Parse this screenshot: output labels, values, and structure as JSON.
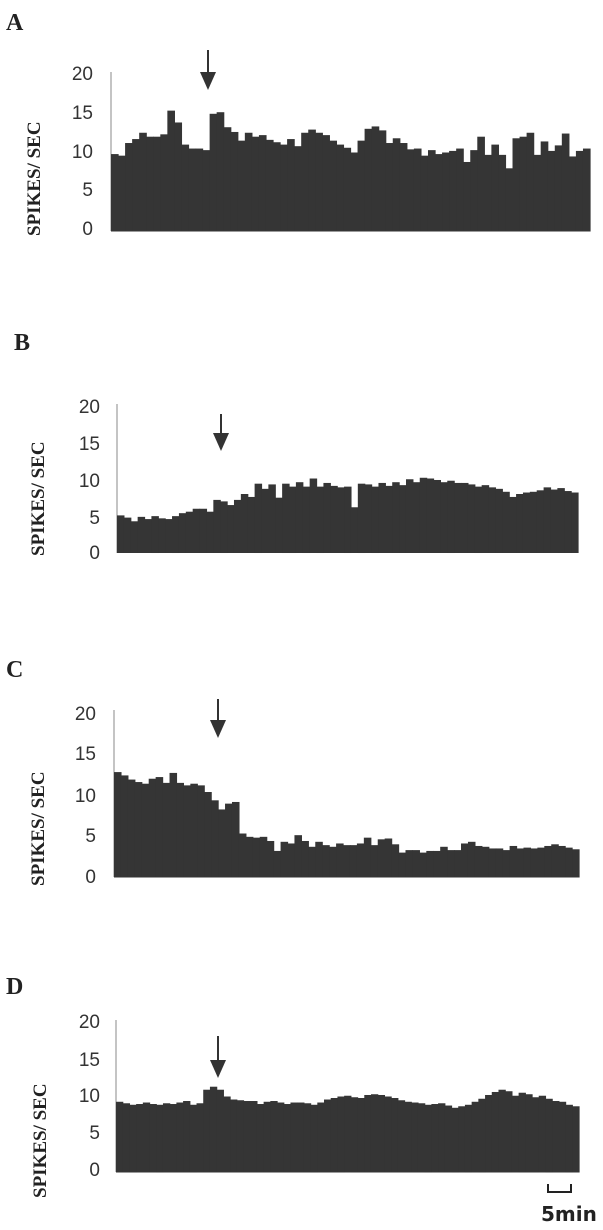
{
  "figure": {
    "bar_color": "#353535",
    "arrow_color": "#333333",
    "scale_bar_label": "5min"
  },
  "chart_data": [
    {
      "type": "bar",
      "panel": "A",
      "ylabel": "SPIKES/ SEC",
      "ylim": [
        0,
        20
      ],
      "yticks": [
        "20",
        "15",
        "10",
        "5",
        "0"
      ],
      "stimulus_bin": 13,
      "values": [
        9.8,
        9.6,
        11.2,
        11.7,
        12.5,
        12.0,
        12.0,
        12.3,
        15.3,
        13.8,
        11.0,
        10.5,
        10.5,
        10.3,
        14.9,
        15.1,
        13.2,
        12.6,
        11.5,
        12.5,
        12.0,
        12.2,
        11.6,
        11.3,
        11.0,
        11.7,
        10.8,
        12.5,
        12.9,
        12.5,
        12.2,
        11.5,
        11.0,
        10.6,
        10.0,
        11.5,
        13.0,
        13.3,
        12.8,
        11.2,
        11.8,
        11.2,
        10.4,
        10.5,
        9.6,
        10.3,
        9.8,
        10.0,
        10.2,
        10.5,
        8.8,
        10.3,
        12.0,
        9.7,
        11.0,
        9.7,
        8.0,
        11.8,
        12.0,
        12.5,
        9.7,
        11.4,
        10.2,
        10.9,
        12.4,
        9.5,
        10.2,
        10.5
      ]
    },
    {
      "type": "bar",
      "panel": "B",
      "ylabel": "SPIKES/ SEC",
      "ylim": [
        0,
        20
      ],
      "yticks": [
        "20",
        "15",
        "10",
        "5",
        "0"
      ],
      "stimulus_bin": 14,
      "values": [
        5.1,
        4.8,
        4.3,
        4.9,
        4.6,
        5.0,
        4.7,
        4.6,
        5.0,
        5.4,
        5.6,
        6.0,
        6.0,
        5.6,
        7.2,
        7.0,
        6.5,
        7.2,
        8.0,
        7.6,
        9.4,
        8.7,
        9.3,
        7.5,
        9.4,
        9.0,
        9.6,
        9.0,
        10.1,
        9.0,
        9.5,
        9.1,
        8.9,
        9.0,
        6.2,
        9.4,
        9.3,
        9.0,
        9.5,
        9.1,
        9.6,
        9.2,
        10.0,
        9.6,
        10.2,
        10.1,
        9.9,
        9.6,
        9.8,
        9.5,
        9.5,
        9.3,
        9.0,
        9.2,
        8.9,
        8.7,
        8.3,
        7.6,
        8.0,
        8.2,
        8.3,
        8.5,
        8.9,
        8.6,
        8.8,
        8.4,
        8.2
      ]
    },
    {
      "type": "bar",
      "panel": "C",
      "ylabel": "SPIKES/ SEC",
      "ylim": [
        0,
        20
      ],
      "yticks": [
        "20",
        "15",
        "10",
        "5",
        "0"
      ],
      "stimulus_bin": 13,
      "values": [
        12.7,
        12.3,
        11.8,
        11.5,
        11.3,
        11.9,
        12.1,
        11.4,
        12.6,
        11.4,
        11.1,
        11.3,
        11.1,
        10.3,
        9.3,
        8.2,
        8.9,
        9.1,
        5.3,
        4.9,
        4.8,
        4.9,
        4.4,
        3.2,
        4.3,
        4.1,
        5.1,
        4.4,
        3.7,
        4.3,
        3.9,
        3.7,
        4.1,
        3.9,
        3.9,
        4.1,
        4.8,
        3.9,
        4.6,
        4.7,
        4.0,
        3.0,
        3.3,
        3.3,
        3.0,
        3.2,
        3.2,
        3.7,
        3.3,
        3.3,
        4.1,
        4.3,
        3.8,
        3.7,
        3.5,
        3.5,
        3.3,
        3.8,
        3.5,
        3.6,
        3.5,
        3.6,
        3.8,
        4.0,
        3.8,
        3.6,
        3.4
      ]
    },
    {
      "type": "bar",
      "panel": "D",
      "ylabel": "SPIKES/ SEC",
      "ylim": [
        0,
        20
      ],
      "yticks": [
        "20",
        "15",
        "10",
        "5",
        "0"
      ],
      "stimulus_bin": 13,
      "values": [
        9.4,
        9.2,
        9.0,
        9.1,
        9.3,
        9.1,
        9.0,
        9.2,
        9.1,
        9.3,
        9.5,
        9.0,
        9.2,
        11.0,
        11.4,
        11.0,
        10.1,
        9.7,
        9.6,
        9.5,
        9.5,
        9.1,
        9.4,
        9.5,
        9.3,
        9.1,
        9.3,
        9.3,
        9.2,
        9.0,
        9.3,
        9.7,
        9.9,
        10.1,
        10.2,
        10.0,
        9.9,
        10.3,
        10.4,
        10.3,
        10.1,
        9.9,
        9.6,
        9.4,
        9.3,
        9.2,
        9.0,
        9.1,
        9.2,
        8.9,
        8.6,
        8.8,
        9.0,
        9.4,
        9.8,
        10.3,
        10.7,
        11.0,
        10.8,
        10.2,
        10.6,
        10.4,
        10.0,
        10.2,
        9.8,
        9.5,
        9.4,
        9.0,
        8.8
      ]
    }
  ]
}
